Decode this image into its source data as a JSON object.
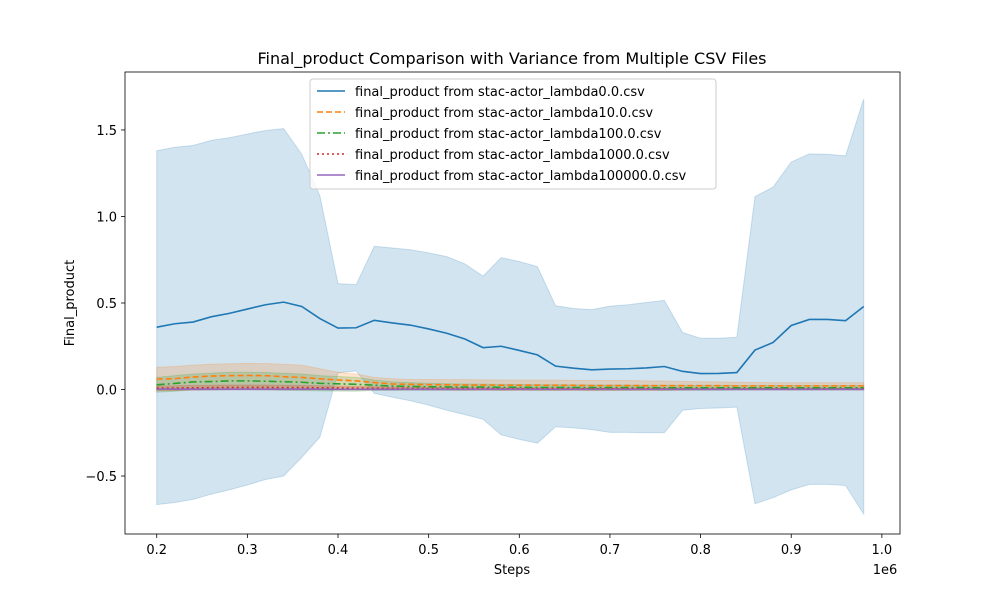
{
  "chart_data": {
    "type": "line",
    "title": "Final_product Comparison with Variance from Multiple CSV Files",
    "xlabel": "Steps",
    "ylabel": "Final_product",
    "x_offset_label": "1e6",
    "xlim": [
      0.165,
      1.02
    ],
    "ylim": [
      -0.835,
      1.835
    ],
    "x_ticks": [
      0.2,
      0.3,
      0.4,
      0.5,
      0.6,
      0.7,
      0.8,
      0.9,
      1.0
    ],
    "x_tick_labels": [
      "0.2",
      "0.3",
      "0.4",
      "0.5",
      "0.6",
      "0.7",
      "0.8",
      "0.9",
      "1.0"
    ],
    "y_ticks": [
      -0.5,
      0.0,
      0.5,
      1.0,
      1.5
    ],
    "y_tick_labels": [
      "−0.5",
      "0.0",
      "0.5",
      "1.0",
      "1.5"
    ],
    "grid": false,
    "legend_position": "top-center",
    "x": [
      0.2,
      0.22,
      0.24,
      0.26,
      0.28,
      0.3,
      0.32,
      0.34,
      0.36,
      0.38,
      0.4,
      0.42,
      0.44,
      0.46,
      0.48,
      0.5,
      0.52,
      0.54,
      0.56,
      0.58,
      0.6,
      0.62,
      0.64,
      0.66,
      0.68,
      0.7,
      0.72,
      0.74,
      0.76,
      0.78,
      0.8,
      0.82,
      0.84,
      0.86,
      0.88,
      0.9,
      0.92,
      0.94,
      0.96,
      0.98
    ],
    "series": [
      {
        "name": "final_product from stac-actor_lambda0.0.csv",
        "color": "#1f77b4",
        "dash": "solid",
        "values": [
          0.36,
          0.38,
          0.39,
          0.42,
          0.44,
          0.465,
          0.49,
          0.505,
          0.48,
          0.41,
          0.355,
          0.357,
          0.4,
          0.385,
          0.372,
          0.35,
          0.325,
          0.292,
          0.242,
          0.25,
          0.226,
          0.2,
          0.135,
          0.123,
          0.114,
          0.118,
          0.12,
          0.125,
          0.133,
          0.105,
          0.092,
          0.093,
          0.098,
          0.228,
          0.272,
          0.37,
          0.405,
          0.405,
          0.398,
          0.48
        ],
        "upper": [
          1.38,
          1.4,
          1.41,
          1.44,
          1.455,
          1.477,
          1.497,
          1.508,
          1.36,
          1.12,
          0.612,
          0.606,
          0.828,
          0.818,
          0.808,
          0.79,
          0.768,
          0.726,
          0.655,
          0.762,
          0.74,
          0.71,
          0.484,
          0.468,
          0.462,
          0.482,
          0.49,
          0.503,
          0.515,
          0.33,
          0.296,
          0.296,
          0.302,
          1.115,
          1.17,
          1.315,
          1.362,
          1.36,
          1.35,
          1.68
        ],
        "lower": [
          -0.665,
          -0.653,
          -0.635,
          -0.605,
          -0.58,
          -0.552,
          -0.52,
          -0.5,
          -0.392,
          -0.275,
          0.097,
          0.107,
          -0.022,
          -0.045,
          -0.065,
          -0.09,
          -0.12,
          -0.145,
          -0.172,
          -0.262,
          -0.288,
          -0.31,
          -0.215,
          -0.222,
          -0.232,
          -0.248,
          -0.248,
          -0.25,
          -0.25,
          -0.12,
          -0.11,
          -0.107,
          -0.102,
          -0.66,
          -0.625,
          -0.58,
          -0.548,
          -0.548,
          -0.555,
          -0.72
        ]
      },
      {
        "name": "final_product from stac-actor_lambda10.0.csv",
        "color": "#ff7f0e",
        "dash": "dashed",
        "values": [
          0.06,
          0.063,
          0.072,
          0.078,
          0.08,
          0.081,
          0.08,
          0.074,
          0.07,
          0.062,
          0.055,
          0.05,
          0.04,
          0.032,
          0.03,
          0.028,
          0.027,
          0.026,
          0.026,
          0.025,
          0.025,
          0.025,
          0.024,
          0.024,
          0.023,
          0.023,
          0.023,
          0.022,
          0.022,
          0.022,
          0.022,
          0.022,
          0.021,
          0.021,
          0.021,
          0.021,
          0.021,
          0.021,
          0.021,
          0.021
        ],
        "upper": [
          0.128,
          0.133,
          0.141,
          0.146,
          0.149,
          0.151,
          0.15,
          0.145,
          0.141,
          0.12,
          0.1,
          0.09,
          0.07,
          0.062,
          0.058,
          0.058,
          0.057,
          0.057,
          0.056,
          0.055,
          0.055,
          0.054,
          0.054,
          0.053,
          0.053,
          0.052,
          0.052,
          0.05,
          0.049,
          0.047,
          0.045,
          0.044,
          0.042,
          0.041,
          0.04,
          0.04,
          0.04,
          0.04,
          0.04,
          0.04
        ],
        "lower": [
          -0.008,
          -0.007,
          0.003,
          0.01,
          0.011,
          0.011,
          0.01,
          0.003,
          -0.001,
          0.004,
          0.01,
          0.01,
          0.01,
          0.002,
          0.002,
          -0.002,
          -0.003,
          -0.005,
          -0.004,
          -0.005,
          -0.005,
          -0.004,
          -0.006,
          -0.005,
          -0.007,
          -0.006,
          -0.006,
          -0.006,
          -0.005,
          -0.003,
          -0.001,
          0.0,
          0.0,
          0.001,
          0.002,
          0.002,
          0.002,
          0.002,
          0.002,
          0.002
        ]
      },
      {
        "name": "final_product from stac-actor_lambda100.0.csv",
        "color": "#2ca02c",
        "dash": "dashdot",
        "values": [
          0.027,
          0.035,
          0.044,
          0.046,
          0.05,
          0.05,
          0.048,
          0.045,
          0.042,
          0.036,
          0.033,
          0.03,
          0.025,
          0.02,
          0.018,
          0.016,
          0.015,
          0.014,
          0.014,
          0.013,
          0.013,
          0.012,
          0.012,
          0.012,
          0.011,
          0.011,
          0.011,
          0.011,
          0.01,
          0.01,
          0.01,
          0.01,
          0.01,
          0.01,
          0.01,
          0.01,
          0.01,
          0.01,
          0.01,
          0.01
        ],
        "upper": [
          0.07,
          0.08,
          0.09,
          0.095,
          0.1,
          0.1,
          0.098,
          0.094,
          0.09,
          0.08,
          0.075,
          0.07,
          0.055,
          0.045,
          0.04,
          0.036,
          0.034,
          0.032,
          0.031,
          0.03,
          0.029,
          0.028,
          0.028,
          0.027,
          0.026,
          0.026,
          0.026,
          0.025,
          0.025,
          0.024,
          0.024,
          0.024,
          0.023,
          0.023,
          0.023,
          0.023,
          0.023,
          0.023,
          0.023,
          0.023
        ],
        "lower": [
          -0.016,
          -0.01,
          -0.002,
          -0.003,
          0.0,
          0.0,
          -0.002,
          -0.004,
          -0.006,
          -0.008,
          -0.009,
          -0.01,
          -0.005,
          -0.005,
          -0.004,
          -0.004,
          -0.004,
          -0.004,
          -0.003,
          -0.004,
          -0.003,
          -0.004,
          -0.004,
          -0.003,
          -0.004,
          -0.004,
          -0.004,
          -0.003,
          -0.005,
          -0.004,
          -0.004,
          -0.004,
          -0.003,
          -0.003,
          -0.003,
          -0.003,
          -0.003,
          -0.003,
          -0.003,
          -0.003
        ]
      },
      {
        "name": "final_product from stac-actor_lambda1000.0.csv",
        "color": "#d62728",
        "dash": "dotted",
        "values": [
          0.008,
          0.009,
          0.01,
          0.011,
          0.012,
          0.012,
          0.012,
          0.011,
          0.011,
          0.01,
          0.009,
          0.008,
          0.007,
          0.006,
          0.006,
          0.005,
          0.005,
          0.005,
          0.005,
          0.004,
          0.004,
          0.004,
          0.004,
          0.004,
          0.004,
          0.004,
          0.004,
          0.004,
          0.003,
          0.003,
          0.003,
          0.003,
          0.003,
          0.003,
          0.003,
          0.003,
          0.003,
          0.003,
          0.003,
          0.003
        ],
        "upper": [
          0.02,
          0.022,
          0.024,
          0.025,
          0.026,
          0.026,
          0.026,
          0.025,
          0.024,
          0.022,
          0.02,
          0.018,
          0.016,
          0.014,
          0.013,
          0.012,
          0.012,
          0.011,
          0.011,
          0.01,
          0.01,
          0.01,
          0.01,
          0.01,
          0.009,
          0.009,
          0.009,
          0.009,
          0.009,
          0.009,
          0.009,
          0.009,
          0.009,
          0.009,
          0.009,
          0.009,
          0.009,
          0.009,
          0.009,
          0.009
        ],
        "lower": [
          -0.004,
          -0.004,
          -0.004,
          -0.003,
          -0.002,
          -0.002,
          -0.002,
          -0.003,
          -0.002,
          -0.002,
          -0.002,
          -0.002,
          -0.002,
          -0.002,
          -0.001,
          -0.002,
          -0.002,
          -0.001,
          -0.001,
          -0.002,
          -0.002,
          -0.002,
          -0.002,
          -0.002,
          -0.001,
          -0.001,
          -0.001,
          -0.001,
          -0.003,
          -0.003,
          -0.003,
          -0.003,
          -0.003,
          -0.003,
          -0.003,
          -0.003,
          -0.003,
          -0.003,
          -0.003,
          -0.003
        ]
      },
      {
        "name": "final_product from stac-actor_lambda100000.0.csv",
        "color": "#9467bd",
        "dash": "solid",
        "values": [
          0.002,
          0.002,
          0.002,
          0.002,
          0.002,
          0.002,
          0.002,
          0.002,
          0.002,
          0.002,
          0.001,
          0.001,
          0.001,
          0.001,
          0.001,
          0.001,
          0.001,
          0.001,
          0.001,
          0.001,
          0.001,
          0.001,
          0.001,
          0.001,
          0.001,
          0.001,
          0.001,
          0.001,
          0.001,
          0.001,
          0.001,
          0.001,
          0.001,
          0.001,
          0.001,
          0.001,
          0.001,
          0.001,
          0.001,
          0.001
        ],
        "upper": [
          0.005,
          0.005,
          0.005,
          0.005,
          0.005,
          0.005,
          0.005,
          0.005,
          0.005,
          0.005,
          0.004,
          0.004,
          0.004,
          0.004,
          0.004,
          0.004,
          0.004,
          0.004,
          0.004,
          0.004,
          0.004,
          0.004,
          0.004,
          0.004,
          0.004,
          0.004,
          0.004,
          0.004,
          0.004,
          0.004,
          0.004,
          0.004,
          0.004,
          0.004,
          0.004,
          0.004,
          0.004,
          0.004,
          0.004,
          0.004
        ],
        "lower": [
          -0.001,
          -0.001,
          -0.001,
          -0.001,
          -0.001,
          -0.001,
          -0.001,
          -0.001,
          -0.001,
          -0.001,
          -0.002,
          -0.002,
          -0.002,
          -0.002,
          -0.002,
          -0.002,
          -0.002,
          -0.002,
          -0.002,
          -0.002,
          -0.002,
          -0.002,
          -0.002,
          -0.002,
          -0.002,
          -0.002,
          -0.002,
          -0.002,
          -0.002,
          -0.002,
          -0.002,
          -0.002,
          -0.002,
          -0.002,
          -0.002,
          -0.002,
          -0.002,
          -0.002,
          -0.002,
          -0.002
        ]
      }
    ]
  }
}
